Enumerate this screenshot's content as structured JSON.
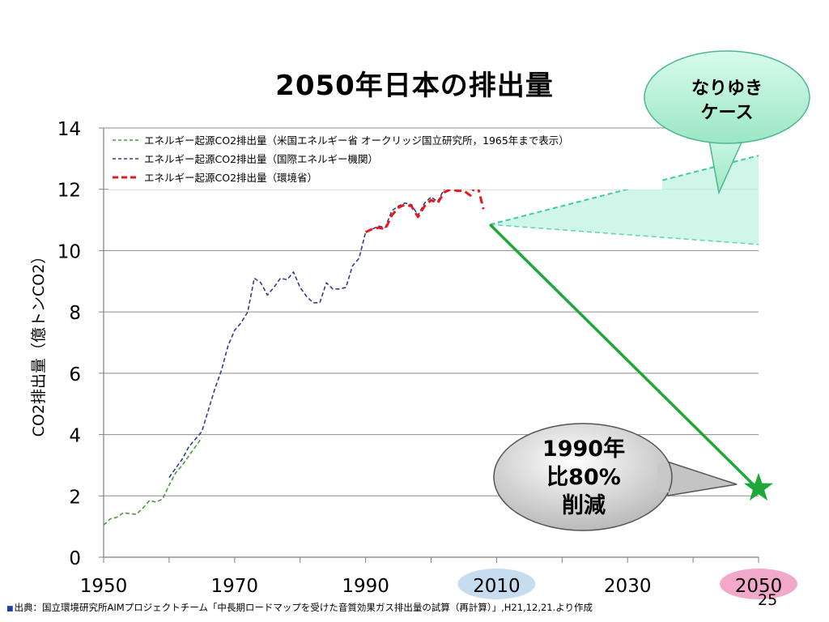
{
  "slide": {
    "title": "2050年日本の排出量",
    "page_number": "25",
    "source_bullet": "■",
    "source": "出典：国立環境研究所AIMプロジェクトチーム「中長期ロードマップを受けた音質効果ガス排出量の試算（再計算）」,H21,12,21.より作成"
  },
  "callouts": {
    "business_as_usual": [
      "なりゆき",
      "ケース"
    ],
    "target": [
      "1990年",
      "比80%",
      "削減"
    ]
  },
  "colors": {
    "green_series": "#4a9a3a",
    "blue_series": "#2e3d8a",
    "red_series": "#e8181c",
    "reduction_line": "#1fa83a",
    "bau_fill": "#c8f5e6",
    "bau_line": "#3cc9a8",
    "highlight_2010": "#c7dcef",
    "highlight_2050": "#f2a9c9"
  },
  "chart_data": {
    "type": "line",
    "title": "",
    "xlabel": "",
    "ylabel": "CO2排出量（億トンCO2）",
    "xlim": [
      1950,
      2050
    ],
    "ylim": [
      0,
      14
    ],
    "x_ticks": [
      "1950",
      "1970",
      "1990",
      "2010",
      "2030",
      "2050"
    ],
    "y_ticks": [
      "0",
      "2",
      "4",
      "6",
      "8",
      "10",
      "12",
      "14"
    ],
    "highlighted_x_ticks": [
      "2010",
      "2050"
    ],
    "grid": "horizontal",
    "legend_position": "top-left",
    "series": [
      {
        "name": "エネルギー起源CO2排出量（米国エネルギー省 オークリッジ国立研究所，1965年まで表示）",
        "style": "dashed",
        "x": [
          1950,
          1951,
          1952,
          1953,
          1954,
          1955,
          1956,
          1957,
          1958,
          1959,
          1960,
          1961,
          1962,
          1963,
          1964,
          1965
        ],
        "y": [
          1.05,
          1.25,
          1.3,
          1.45,
          1.42,
          1.4,
          1.6,
          1.85,
          1.8,
          1.9,
          2.35,
          2.75,
          3.0,
          3.3,
          3.6,
          3.9
        ]
      },
      {
        "name": "エネルギー起源CO2排出量（国際エネルギー機関）",
        "style": "dashed",
        "x": [
          1960,
          1961,
          1962,
          1963,
          1964,
          1965,
          1966,
          1967,
          1968,
          1969,
          1970,
          1971,
          1972,
          1973,
          1974,
          1975,
          1976,
          1977,
          1978,
          1979,
          1980,
          1981,
          1982,
          1983,
          1984,
          1985,
          1986,
          1987,
          1988,
          1989,
          1990,
          1991,
          1992,
          1993,
          1994,
          1995,
          1996,
          1997,
          1998,
          1999,
          2000,
          2001,
          2002,
          2003,
          2004,
          2005,
          2006,
          2007
        ],
        "y": [
          2.6,
          2.9,
          3.2,
          3.6,
          3.85,
          4.1,
          4.8,
          5.5,
          6.1,
          6.9,
          7.4,
          7.65,
          8.0,
          9.1,
          8.95,
          8.55,
          8.8,
          9.1,
          9.05,
          9.3,
          8.8,
          8.5,
          8.3,
          8.3,
          8.95,
          8.75,
          8.75,
          8.8,
          9.5,
          9.75,
          10.6,
          10.7,
          10.8,
          10.75,
          11.3,
          11.45,
          11.55,
          11.5,
          11.15,
          11.55,
          11.75,
          11.6,
          12.0,
          12.05,
          12.1,
          12.1,
          12.0,
          12.25
        ]
      },
      {
        "name": "エネルギー起源CO2排出量（環境省）",
        "style": "dashed",
        "x": [
          1990,
          1991,
          1992,
          1993,
          1994,
          1995,
          1996,
          1997,
          1998,
          1999,
          2000,
          2001,
          2002,
          2003,
          2004,
          2005,
          2006,
          2007,
          2008
        ],
        "y": [
          10.6,
          10.7,
          10.75,
          10.7,
          11.15,
          11.4,
          11.5,
          11.45,
          11.1,
          11.45,
          11.65,
          11.55,
          11.9,
          12.0,
          11.95,
          11.95,
          11.8,
          12.2,
          11.35
        ]
      }
    ],
    "projections": {
      "start": {
        "x": 2009,
        "y": 10.85
      },
      "business_as_usual": {
        "x": 2050,
        "y_high": 13.1,
        "y_low": 10.2
      },
      "reduction_target": {
        "x": 2050,
        "y": 2.2
      }
    }
  }
}
